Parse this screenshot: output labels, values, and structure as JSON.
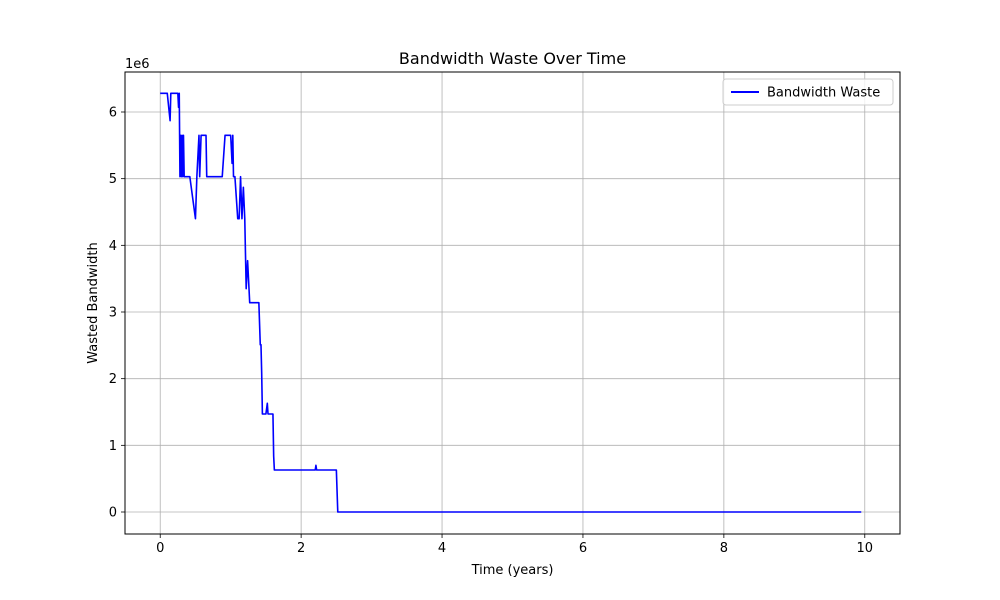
{
  "chart_data": {
    "type": "line",
    "title": "Bandwidth Waste Over Time",
    "xlabel": "Time (years)",
    "ylabel": "Wasted Bandwidth",
    "y_offset_label": "1e6",
    "xlim": [
      -0.5,
      10.5
    ],
    "ylim": [
      -0.33,
      6.6
    ],
    "y_scale": 1000000,
    "x_ticks": [
      0,
      2,
      4,
      6,
      8,
      10
    ],
    "y_ticks": [
      0,
      1,
      2,
      3,
      4,
      5,
      6
    ],
    "grid": true,
    "legend_position": "top-right",
    "series": [
      {
        "name": "Bandwidth Waste",
        "color": "#0000ff",
        "x": [
          0,
          0.1,
          0.14,
          0.15,
          0.25,
          0.26,
          0.27,
          0.28,
          0.29,
          0.3,
          0.31,
          0.32,
          0.33,
          0.34,
          0.35,
          0.36,
          0.42,
          0.5,
          0.52,
          0.55,
          0.56,
          0.58,
          0.6,
          0.62,
          0.65,
          0.66,
          0.88,
          0.92,
          1.0,
          1.02,
          1.03,
          1.04,
          1.06,
          1.1,
          1.12,
          1.14,
          1.16,
          1.18,
          1.2,
          1.22,
          1.24,
          1.26,
          1.27,
          1.28,
          1.3,
          1.4,
          1.42,
          1.43,
          1.44,
          1.45,
          1.5,
          1.52,
          1.53,
          1.6,
          1.61,
          1.62,
          1.63,
          2.2,
          2.21,
          2.22,
          2.5,
          2.52,
          9.95
        ],
        "y": [
          6.28,
          6.28,
          5.87,
          6.28,
          6.28,
          6.07,
          6.28,
          5.03,
          5.65,
          5.03,
          5.65,
          5.03,
          5.65,
          5.03,
          5.03,
          5.03,
          5.03,
          4.4,
          5.03,
          5.65,
          5.03,
          5.65,
          5.65,
          5.65,
          5.65,
          5.03,
          5.03,
          5.65,
          5.65,
          5.23,
          5.65,
          5.03,
          5.03,
          4.4,
          4.4,
          5.03,
          4.4,
          4.87,
          4.4,
          3.35,
          3.77,
          3.35,
          3.14,
          3.14,
          3.14,
          3.14,
          2.51,
          2.51,
          2.09,
          1.47,
          1.47,
          1.63,
          1.47,
          1.47,
          0.84,
          0.63,
          0.63,
          0.63,
          0.7,
          0.63,
          0.63,
          0,
          0
        ]
      }
    ]
  }
}
